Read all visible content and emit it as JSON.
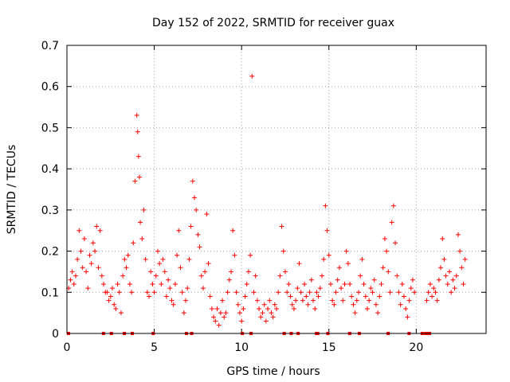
{
  "chart_data": {
    "type": "scatter",
    "title": "Day 152 of 2022, SRMTID for receiver guax",
    "xlabel": "GPS time / hours",
    "ylabel": "SRMTID / TECUs",
    "xlim": [
      0,
      24
    ],
    "ylim": [
      0,
      0.7
    ],
    "xticks": [
      "0",
      "5",
      "10",
      "15",
      "20"
    ],
    "xtick_values": [
      0,
      5,
      10,
      15,
      20
    ],
    "yticks": [
      "0",
      "0.1",
      "0.2",
      "0.3",
      "0.4",
      "0.5",
      "0.6",
      "0.7"
    ],
    "ytick_values": [
      0,
      0.1,
      0.2,
      0.3,
      0.4,
      0.5,
      0.6,
      0.7
    ],
    "grid": true,
    "marker": "+",
    "color": "#ff0000",
    "series": [
      {
        "name": "SRMTID",
        "points": [
          [
            0.1,
            0.11
          ],
          [
            0.2,
            0.13
          ],
          [
            0.3,
            0.15
          ],
          [
            0.4,
            0.12
          ],
          [
            0.5,
            0.14
          ],
          [
            0.6,
            0.18
          ],
          [
            0.7,
            0.25
          ],
          [
            0.8,
            0.2
          ],
          [
            0.9,
            0.16
          ],
          [
            1.0,
            0.23
          ],
          [
            1.1,
            0.15
          ],
          [
            1.2,
            0.11
          ],
          [
            1.3,
            0.19
          ],
          [
            1.4,
            0.17
          ],
          [
            1.5,
            0.22
          ],
          [
            1.6,
            0.2
          ],
          [
            1.7,
            0.26
          ],
          [
            1.8,
            0.16
          ],
          [
            1.9,
            0.25
          ],
          [
            2.0,
            0.14
          ],
          [
            2.1,
            0.12
          ],
          [
            2.2,
            0.1
          ],
          [
            2.3,
            0.1
          ],
          [
            2.4,
            0.08
          ],
          [
            2.5,
            0.09
          ],
          [
            2.6,
            0.11
          ],
          [
            2.7,
            0.07
          ],
          [
            2.8,
            0.06
          ],
          [
            2.9,
            0.12
          ],
          [
            3.0,
            0.1
          ],
          [
            3.1,
            0.05
          ],
          [
            3.2,
            0.14
          ],
          [
            3.3,
            0.18
          ],
          [
            3.4,
            0.16
          ],
          [
            3.5,
            0.19
          ],
          [
            3.6,
            0.12
          ],
          [
            3.7,
            0.1
          ],
          [
            3.8,
            0.22
          ],
          [
            3.9,
            0.37
          ],
          [
            4.0,
            0.53
          ],
          [
            4.05,
            0.49
          ],
          [
            4.1,
            0.43
          ],
          [
            4.15,
            0.38
          ],
          [
            4.2,
            0.27
          ],
          [
            4.3,
            0.23
          ],
          [
            4.4,
            0.3
          ],
          [
            4.5,
            0.18
          ],
          [
            4.6,
            0.1
          ],
          [
            4.7,
            0.09
          ],
          [
            4.8,
            0.15
          ],
          [
            4.9,
            0.12
          ],
          [
            5.0,
            0.1
          ],
          [
            5.1,
            0.14
          ],
          [
            5.2,
            0.2
          ],
          [
            5.3,
            0.17
          ],
          [
            5.4,
            0.12
          ],
          [
            5.5,
            0.18
          ],
          [
            5.6,
            0.15
          ],
          [
            5.7,
            0.09
          ],
          [
            5.8,
            0.13
          ],
          [
            5.9,
            0.11
          ],
          [
            6.0,
            0.08
          ],
          [
            6.1,
            0.07
          ],
          [
            6.2,
            0.12
          ],
          [
            6.3,
            0.19
          ],
          [
            6.4,
            0.25
          ],
          [
            6.5,
            0.16
          ],
          [
            6.6,
            0.1
          ],
          [
            6.7,
            0.05
          ],
          [
            6.8,
            0.08
          ],
          [
            6.9,
            0.11
          ],
          [
            7.0,
            0.18
          ],
          [
            7.1,
            0.26
          ],
          [
            7.2,
            0.37
          ],
          [
            7.3,
            0.33
          ],
          [
            7.4,
            0.3
          ],
          [
            7.5,
            0.24
          ],
          [
            7.6,
            0.21
          ],
          [
            7.7,
            0.14
          ],
          [
            7.8,
            0.11
          ],
          [
            7.9,
            0.15
          ],
          [
            8.0,
            0.29
          ],
          [
            8.1,
            0.17
          ],
          [
            8.2,
            0.09
          ],
          [
            8.3,
            0.06
          ],
          [
            8.4,
            0.04
          ],
          [
            8.5,
            0.03
          ],
          [
            8.6,
            0.06
          ],
          [
            8.7,
            0.02
          ],
          [
            8.8,
            0.05
          ],
          [
            8.9,
            0.08
          ],
          [
            9.0,
            0.04
          ],
          [
            9.1,
            0.05
          ],
          [
            9.2,
            0.1
          ],
          [
            9.3,
            0.13
          ],
          [
            9.4,
            0.15
          ],
          [
            9.5,
            0.25
          ],
          [
            9.6,
            0.19
          ],
          [
            9.7,
            0.1
          ],
          [
            9.8,
            0.07
          ],
          [
            9.9,
            0.05
          ],
          [
            10.0,
            0.03
          ],
          [
            10.1,
            0.06
          ],
          [
            10.2,
            0.09
          ],
          [
            10.3,
            0.12
          ],
          [
            10.4,
            0.15
          ],
          [
            10.5,
            0.19
          ],
          [
            10.6,
            0.625
          ],
          [
            10.7,
            0.1
          ],
          [
            10.8,
            0.14
          ],
          [
            10.9,
            0.08
          ],
          [
            11.0,
            0.06
          ],
          [
            11.1,
            0.04
          ],
          [
            11.2,
            0.05
          ],
          [
            11.3,
            0.07
          ],
          [
            11.4,
            0.03
          ],
          [
            11.5,
            0.06
          ],
          [
            11.6,
            0.08
          ],
          [
            11.7,
            0.05
          ],
          [
            11.8,
            0.04
          ],
          [
            11.9,
            0.07
          ],
          [
            12.0,
            0.06
          ],
          [
            12.1,
            0.1
          ],
          [
            12.2,
            0.14
          ],
          [
            12.3,
            0.26
          ],
          [
            12.4,
            0.2
          ],
          [
            12.5,
            0.15
          ],
          [
            12.6,
            0.1
          ],
          [
            12.7,
            0.12
          ],
          [
            12.8,
            0.09
          ],
          [
            12.9,
            0.07
          ],
          [
            13.0,
            0.06
          ],
          [
            13.1,
            0.08
          ],
          [
            13.2,
            0.11
          ],
          [
            13.3,
            0.17
          ],
          [
            13.4,
            0.1
          ],
          [
            13.5,
            0.08
          ],
          [
            13.6,
            0.12
          ],
          [
            13.7,
            0.09
          ],
          [
            13.8,
            0.07
          ],
          [
            13.9,
            0.1
          ],
          [
            14.0,
            0.13
          ],
          [
            14.1,
            0.08
          ],
          [
            14.2,
            0.06
          ],
          [
            14.3,
            0.1
          ],
          [
            14.4,
            0.09
          ],
          [
            14.5,
            0.11
          ],
          [
            14.6,
            0.14
          ],
          [
            14.7,
            0.18
          ],
          [
            14.8,
            0.31
          ],
          [
            14.9,
            0.25
          ],
          [
            15.0,
            0.19
          ],
          [
            15.1,
            0.12
          ],
          [
            15.2,
            0.08
          ],
          [
            15.3,
            0.07
          ],
          [
            15.4,
            0.1
          ],
          [
            15.5,
            0.13
          ],
          [
            15.6,
            0.16
          ],
          [
            15.7,
            0.11
          ],
          [
            15.8,
            0.08
          ],
          [
            15.9,
            0.12
          ],
          [
            16.0,
            0.2
          ],
          [
            16.1,
            0.17
          ],
          [
            16.2,
            0.12
          ],
          [
            16.3,
            0.09
          ],
          [
            16.4,
            0.07
          ],
          [
            16.5,
            0.05
          ],
          [
            16.6,
            0.08
          ],
          [
            16.7,
            0.1
          ],
          [
            16.8,
            0.14
          ],
          [
            16.9,
            0.18
          ],
          [
            17.0,
            0.12
          ],
          [
            17.1,
            0.09
          ],
          [
            17.2,
            0.06
          ],
          [
            17.3,
            0.08
          ],
          [
            17.4,
            0.11
          ],
          [
            17.5,
            0.1
          ],
          [
            17.6,
            0.13
          ],
          [
            17.7,
            0.07
          ],
          [
            17.8,
            0.05
          ],
          [
            17.9,
            0.09
          ],
          [
            18.0,
            0.12
          ],
          [
            18.1,
            0.16
          ],
          [
            18.2,
            0.23
          ],
          [
            18.3,
            0.2
          ],
          [
            18.4,
            0.15
          ],
          [
            18.5,
            0.1
          ],
          [
            18.6,
            0.27
          ],
          [
            18.7,
            0.31
          ],
          [
            18.8,
            0.22
          ],
          [
            18.9,
            0.14
          ],
          [
            19.0,
            0.1
          ],
          [
            19.1,
            0.07
          ],
          [
            19.2,
            0.12
          ],
          [
            19.3,
            0.09
          ],
          [
            19.4,
            0.06
          ],
          [
            19.5,
            0.04
          ],
          [
            19.6,
            0.08
          ],
          [
            19.7,
            0.11
          ],
          [
            19.8,
            0.13
          ],
          [
            19.9,
            0.1
          ],
          [
            20.6,
            0.08
          ],
          [
            20.7,
            0.1
          ],
          [
            20.8,
            0.12
          ],
          [
            20.9,
            0.09
          ],
          [
            21.0,
            0.11
          ],
          [
            21.1,
            0.1
          ],
          [
            21.2,
            0.08
          ],
          [
            21.3,
            0.13
          ],
          [
            21.4,
            0.16
          ],
          [
            21.5,
            0.23
          ],
          [
            21.6,
            0.18
          ],
          [
            21.7,
            0.14
          ],
          [
            21.8,
            0.12
          ],
          [
            21.9,
            0.15
          ],
          [
            22.0,
            0.1
          ],
          [
            22.1,
            0.13
          ],
          [
            22.2,
            0.11
          ],
          [
            22.3,
            0.14
          ],
          [
            22.4,
            0.24
          ],
          [
            22.5,
            0.2
          ],
          [
            22.6,
            0.16
          ],
          [
            22.7,
            0.12
          ],
          [
            22.8,
            0.18
          ]
        ]
      }
    ],
    "zero_segments": [
      [
        0.0,
        0.15
      ],
      [
        2.0,
        2.15
      ],
      [
        2.45,
        2.55
      ],
      [
        3.2,
        3.35
      ],
      [
        3.65,
        3.75
      ],
      [
        4.85,
        4.95
      ],
      [
        6.75,
        6.85
      ],
      [
        7.05,
        7.15
      ],
      [
        9.95,
        10.1
      ],
      [
        10.45,
        10.55
      ],
      [
        12.35,
        12.5
      ],
      [
        12.75,
        12.85
      ],
      [
        13.15,
        13.25
      ],
      [
        14.2,
        14.45
      ],
      [
        14.85,
        14.95
      ],
      [
        16.1,
        16.15
      ],
      [
        16.65,
        16.75
      ],
      [
        18.3,
        18.45
      ],
      [
        19.5,
        19.6
      ],
      [
        20.25,
        20.3
      ],
      [
        20.45,
        20.85
      ]
    ]
  }
}
